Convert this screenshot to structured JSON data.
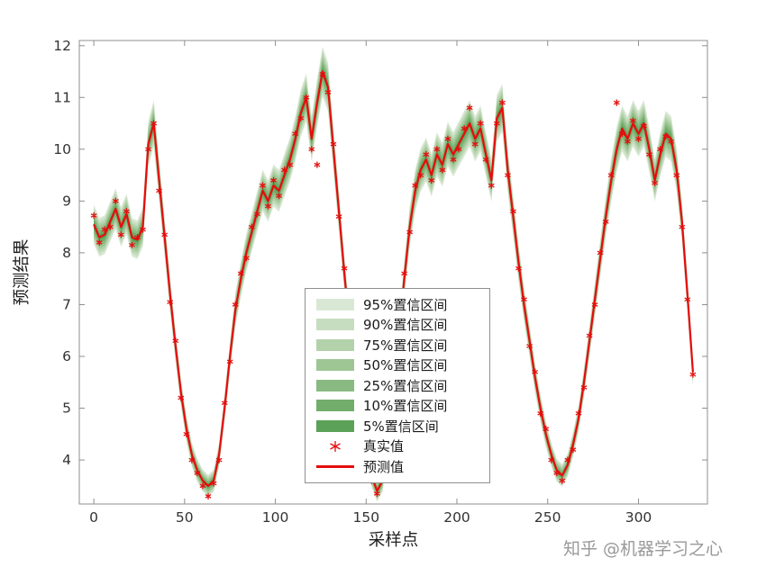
{
  "watermark": "知乎 @机器学习之心",
  "chart_data": {
    "type": "line",
    "title": "",
    "xlabel": "采样点",
    "ylabel": "预测结果",
    "xlim": [
      -8,
      338
    ],
    "ylim": [
      3.15,
      12.1
    ],
    "xticks": [
      0,
      50,
      100,
      150,
      200,
      250,
      300
    ],
    "yticks": [
      4,
      5,
      6,
      7,
      8,
      9,
      10,
      11,
      12
    ],
    "grid": false,
    "line_color": "#e60c0c",
    "marker_color": "#e60c0c",
    "axis_color": "#8f8f8f",
    "tick_label_color": "#333333",
    "axis_label_color": "#222222",
    "legend": {
      "actual_label": "真实值",
      "predicted_label": "预测值"
    },
    "bands": [
      {
        "label": "95%置信区间",
        "factor": 1.0,
        "color": "#d9e8d4"
      },
      {
        "label": "90%置信区间",
        "factor": 0.86,
        "color": "#c7ddc0"
      },
      {
        "label": "75%置信区间",
        "factor": 0.72,
        "color": "#b3d2ab"
      },
      {
        "label": "50%置信区间",
        "factor": 0.58,
        "color": "#9ec695"
      },
      {
        "label": "25%置信区间",
        "factor": 0.44,
        "color": "#88ba81"
      },
      {
        "label": "10%置信区间",
        "factor": 0.3,
        "color": "#72ad6c"
      },
      {
        "label": "5%置信区间",
        "factor": 0.16,
        "color": "#5ca158"
      }
    ],
    "band_halfwidth": {
      "base": 0.2,
      "slope": 0.034,
      "ref": 3.2
    },
    "x": [
      0,
      3,
      6,
      9,
      12,
      15,
      18,
      21,
      24,
      27,
      30,
      33,
      36,
      39,
      42,
      45,
      48,
      51,
      54,
      57,
      60,
      63,
      66,
      69,
      72,
      75,
      78,
      81,
      84,
      87,
      90,
      93,
      96,
      99,
      102,
      105,
      108,
      111,
      114,
      117,
      120,
      123,
      126,
      129,
      132,
      135,
      138,
      141,
      144,
      147,
      150,
      153,
      156,
      159,
      162,
      165,
      168,
      171,
      174,
      177,
      180,
      183,
      186,
      189,
      192,
      195,
      198,
      201,
      204,
      207,
      210,
      213,
      216,
      219,
      222,
      225,
      228,
      231,
      234,
      237,
      240,
      243,
      246,
      249,
      252,
      255,
      258,
      261,
      264,
      267,
      270,
      273,
      276,
      279,
      282,
      285,
      288,
      291,
      294,
      297,
      300,
      303,
      306,
      309,
      312,
      315,
      318,
      321,
      324,
      327,
      330
    ],
    "predicted": [
      8.55,
      8.3,
      8.35,
      8.6,
      8.85,
      8.5,
      8.75,
      8.3,
      8.25,
      8.5,
      10.1,
      10.5,
      9.4,
      8.3,
      7.2,
      6.2,
      5.3,
      4.6,
      4.1,
      3.8,
      3.6,
      3.5,
      3.6,
      4.1,
      5.0,
      6.0,
      6.9,
      7.5,
      8.0,
      8.4,
      8.8,
      9.2,
      9.0,
      9.3,
      9.2,
      9.5,
      9.8,
      10.2,
      10.7,
      11.0,
      10.2,
      10.9,
      11.5,
      11.2,
      10.0,
      8.8,
      7.6,
      6.5,
      5.6,
      4.8,
      4.2,
      3.7,
      3.4,
      3.6,
      4.3,
      5.3,
      6.4,
      7.5,
      8.5,
      9.2,
      9.6,
      9.8,
      9.5,
      9.9,
      9.7,
      10.1,
      9.9,
      10.1,
      10.3,
      10.5,
      10.2,
      10.4,
      9.9,
      9.4,
      10.6,
      10.8,
      9.6,
      8.7,
      7.8,
      7.0,
      6.3,
      5.6,
      5.0,
      4.5,
      4.1,
      3.8,
      3.7,
      3.9,
      4.3,
      4.8,
      5.5,
      6.3,
      7.1,
      7.9,
      8.7,
      9.4,
      10.0,
      10.4,
      10.2,
      10.5,
      10.3,
      10.5,
      10.0,
      9.4,
      9.9,
      10.3,
      10.2,
      9.6,
      8.6,
      7.2,
      5.7
    ],
    "actual": [
      8.72,
      8.2,
      8.45,
      8.5,
      9.0,
      8.35,
      8.8,
      8.15,
      8.3,
      8.45,
      10.0,
      10.5,
      9.2,
      8.35,
      7.05,
      6.3,
      5.2,
      4.5,
      4.0,
      3.75,
      3.5,
      3.3,
      3.55,
      4.0,
      5.1,
      5.9,
      7.0,
      7.6,
      7.9,
      8.5,
      8.75,
      9.3,
      8.9,
      9.4,
      9.1,
      9.6,
      9.7,
      10.3,
      10.6,
      11.0,
      10.0,
      9.7,
      11.45,
      11.1,
      10.1,
      8.7,
      7.7,
      6.4,
      5.7,
      4.7,
      4.3,
      3.6,
      3.35,
      3.7,
      4.2,
      5.4,
      6.3,
      7.6,
      8.4,
      9.3,
      9.5,
      9.9,
      9.4,
      10.0,
      9.6,
      10.2,
      9.8,
      10.0,
      10.4,
      10.8,
      10.1,
      10.5,
      9.8,
      9.3,
      10.5,
      10.9,
      9.5,
      8.8,
      7.7,
      7.1,
      6.2,
      5.7,
      4.9,
      4.6,
      4.0,
      3.75,
      3.6,
      4.0,
      4.2,
      4.9,
      5.4,
      6.4,
      7.0,
      8.0,
      8.6,
      9.5,
      10.9,
      10.3,
      10.15,
      10.55,
      10.2,
      10.45,
      9.9,
      9.35,
      10.0,
      10.25,
      10.15,
      9.5,
      8.5,
      7.1,
      5.65
    ]
  }
}
